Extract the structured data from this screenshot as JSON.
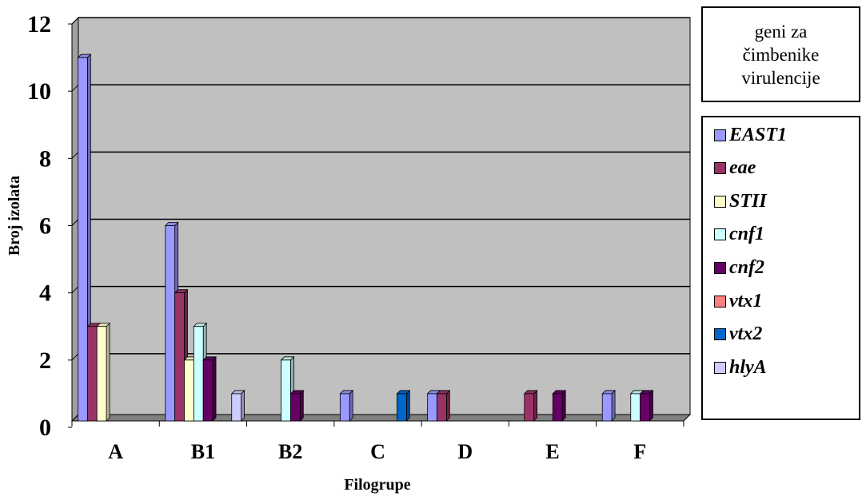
{
  "chart_data": {
    "type": "bar",
    "title": "",
    "xlabel": "Filogrupe",
    "ylabel": "Broj izolata",
    "ylim": [
      0,
      12
    ],
    "yticks": [
      "0",
      "2",
      "4",
      "6",
      "8",
      "10",
      "12"
    ],
    "categories": [
      "A",
      "B1",
      "B2",
      "C",
      "D",
      "E",
      "F"
    ],
    "grid": "horizontal",
    "legend_position": "right",
    "legend_title": "geni za čimbenike virulencije",
    "series": [
      {
        "name": "EAST1",
        "color": "#9999FF",
        "values": [
          11,
          6,
          0,
          1,
          1,
          0,
          1
        ]
      },
      {
        "name": "eae",
        "color": "#993366",
        "values": [
          3,
          4,
          0,
          0,
          1,
          1,
          0
        ]
      },
      {
        "name": "STII",
        "color": "#FFFFCC",
        "values": [
          3,
          2,
          0,
          0,
          0,
          0,
          0
        ]
      },
      {
        "name": "cnf1",
        "color": "#CCFFFF",
        "values": [
          0,
          3,
          2,
          0,
          0,
          0,
          1
        ]
      },
      {
        "name": "cnf2",
        "color": "#660066",
        "values": [
          0,
          2,
          1,
          0,
          0,
          1,
          1
        ]
      },
      {
        "name": "vtx1",
        "color": "#FF8080",
        "values": [
          0,
          0,
          0,
          0,
          0,
          0,
          0
        ]
      },
      {
        "name": "vtx2",
        "color": "#0066CC",
        "values": [
          0,
          0,
          0,
          1,
          0,
          0,
          0
        ]
      },
      {
        "name": "hlyA",
        "color": "#CCCCFF",
        "values": [
          0,
          1,
          0,
          0,
          0,
          0,
          0
        ]
      }
    ]
  }
}
